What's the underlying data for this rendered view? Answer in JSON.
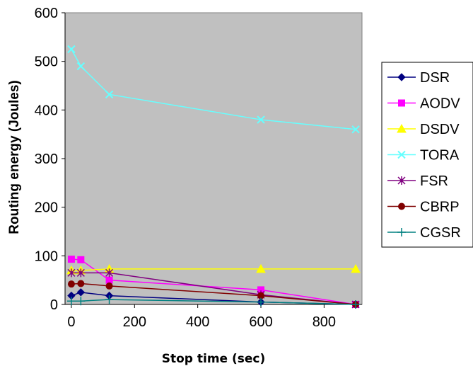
{
  "chart_data": {
    "type": "line",
    "title": "",
    "xlabel": "Stop time (sec)",
    "ylabel": "Routing energy (Joules)",
    "xlim": [
      -20,
      920
    ],
    "ylim": [
      0,
      600
    ],
    "xticks": [
      0,
      200,
      400,
      600,
      800
    ],
    "yticks": [
      0,
      100,
      200,
      300,
      400,
      500,
      600
    ],
    "x": [
      0,
      30,
      120,
      600,
      900
    ],
    "grid": false,
    "plot_background": "#c0c0c0",
    "legend_position": "right",
    "series": [
      {
        "name": "DSR",
        "color": "#000080",
        "marker": "diamond",
        "values": [
          18,
          25,
          18,
          5,
          0
        ]
      },
      {
        "name": "AODV",
        "color": "#ff00ff",
        "marker": "square",
        "values": [
          93,
          92,
          50,
          30,
          0
        ]
      },
      {
        "name": "DSDV",
        "color": "#ffff00",
        "marker": "triangle",
        "values": [
          70,
          70,
          73,
          73,
          73
        ]
      },
      {
        "name": "TORA",
        "color": "#66ffff",
        "marker": "x",
        "values": [
          525,
          490,
          432,
          380,
          360
        ]
      },
      {
        "name": "FSR",
        "color": "#800080",
        "marker": "star",
        "values": [
          65,
          65,
          65,
          20,
          0
        ]
      },
      {
        "name": "CBRP",
        "color": "#800000",
        "marker": "circle",
        "values": [
          42,
          43,
          38,
          18,
          0
        ]
      },
      {
        "name": "CGSR",
        "color": "#008080",
        "marker": "plus",
        "values": [
          7,
          7,
          10,
          5,
          0
        ]
      }
    ]
  }
}
